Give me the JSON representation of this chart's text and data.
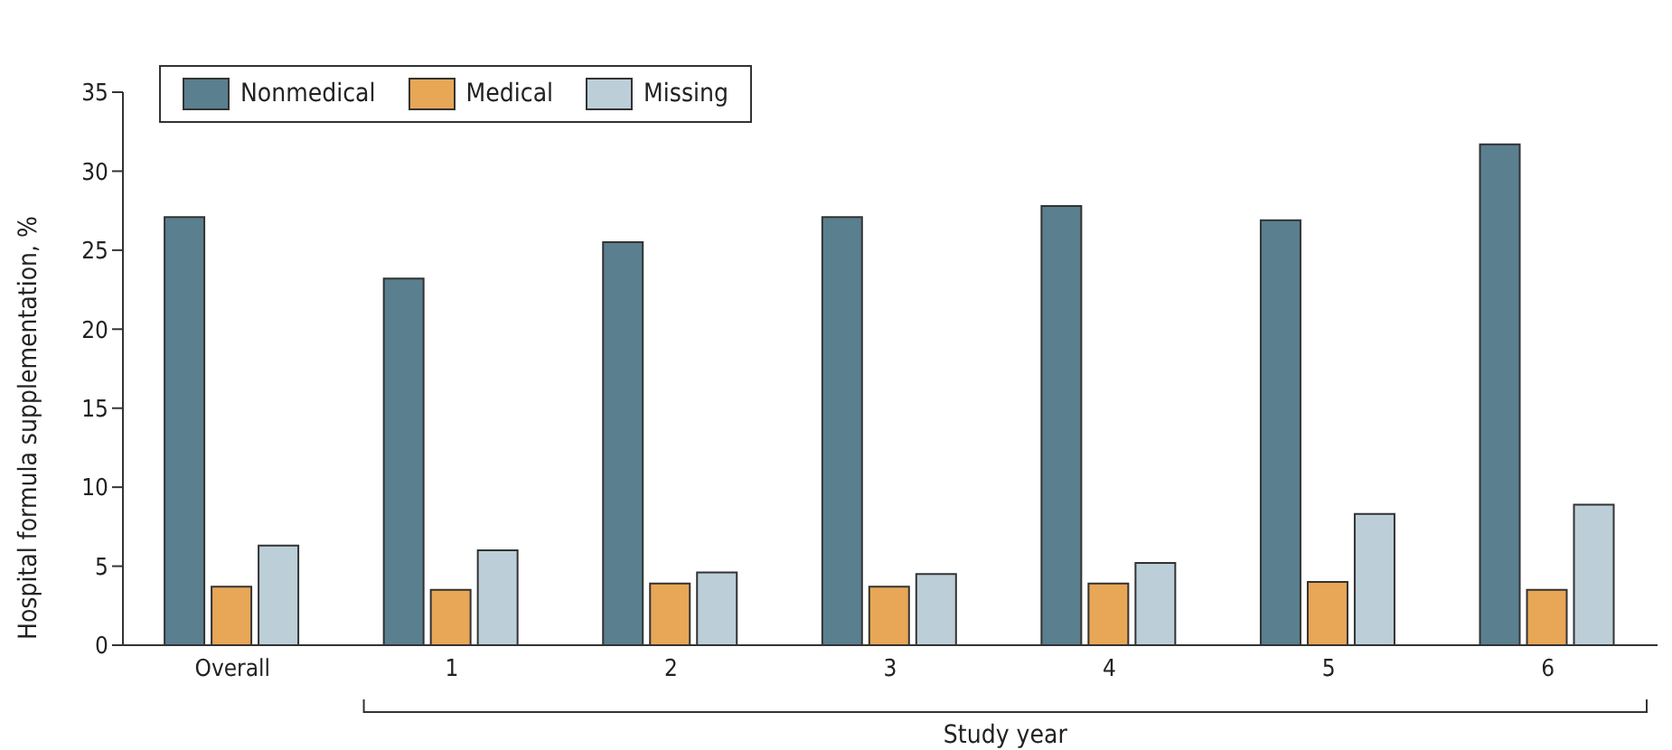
{
  "chart_data": {
    "type": "bar",
    "xlabel": "Study year",
    "ylabel": "Hospital formula supplementation, %",
    "categories": [
      "Overall",
      "1",
      "2",
      "3",
      "4",
      "5",
      "6"
    ],
    "series": [
      {
        "name": "Nonmedical",
        "color": "#5a7f8f",
        "values": [
          27.1,
          23.2,
          25.5,
          27.1,
          27.8,
          26.9,
          31.7
        ]
      },
      {
        "name": "Medical",
        "color": "#e8a657",
        "values": [
          3.7,
          3.5,
          3.9,
          3.7,
          3.9,
          4.0,
          3.5
        ]
      },
      {
        "name": "Missing",
        "color": "#bccfd8",
        "values": [
          6.3,
          6.0,
          4.6,
          4.5,
          5.2,
          8.3,
          8.9
        ]
      }
    ],
    "ylim": [
      0,
      35
    ],
    "yticks": [
      0,
      5,
      10,
      15,
      20,
      25,
      30,
      35
    ],
    "legend": "top left"
  }
}
